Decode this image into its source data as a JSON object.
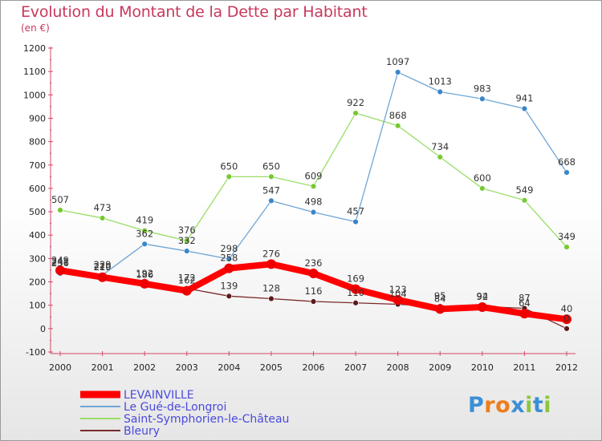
{
  "header": {
    "title": "Evolution du Montant de la Dette par Habitant",
    "unit": "(en €)"
  },
  "logo": {
    "text": "Proxiti",
    "colors": [
      "#3b8fd6",
      "#ee7d1a",
      "#ee7d1a",
      "#3b8fd6",
      "#8cc63f",
      "#3b8fd6",
      "#8cc63f"
    ]
  },
  "chart_data": {
    "type": "line",
    "x": [
      "2000",
      "2001",
      "2002",
      "2003",
      "2004",
      "2005",
      "2006",
      "2007",
      "2008",
      "2009",
      "2010",
      "2011",
      "2012"
    ],
    "ylim": [
      -100,
      1200
    ],
    "yticks": [
      -100,
      0,
      100,
      200,
      300,
      400,
      500,
      600,
      700,
      800,
      900,
      1000,
      1100,
      1200
    ],
    "grid": false,
    "legend": "bottom-left",
    "series": [
      {
        "name": "Saint-Symphorien-le-Château",
        "color": "#99dd66",
        "marker": "#77c930",
        "values": [
          507,
          473,
          419,
          376,
          650,
          650,
          609,
          922,
          868,
          734,
          600,
          549,
          349
        ]
      },
      {
        "name": "Le Gué-de-Longroi",
        "color": "#6fa6d6",
        "marker": "#3a86c9",
        "values": [
          236,
          229,
          362,
          332,
          298,
          547,
          498,
          457,
          1097,
          1013,
          983,
          941,
          668
        ]
      },
      {
        "name": "Bleury",
        "color": "#7a2a2a",
        "marker": "#5c1a1a",
        "values": [
          241,
          219,
          186,
          172,
          139,
          128,
          116,
          110,
          104,
          95,
          94,
          87,
          0
        ]
      },
      {
        "name": "LEVAINVILLE",
        "color": "#ff0000",
        "marker": "#ee0000",
        "values": [
          249,
          220,
          192,
          162,
          258,
          276,
          236,
          169,
          123,
          84,
          92,
          64,
          40
        ]
      }
    ],
    "legend_order": [
      "LEVAINVILLE",
      "Le Gué-de-Longroi",
      "Saint-Symphorien-le-Château",
      "Bleury"
    ]
  }
}
